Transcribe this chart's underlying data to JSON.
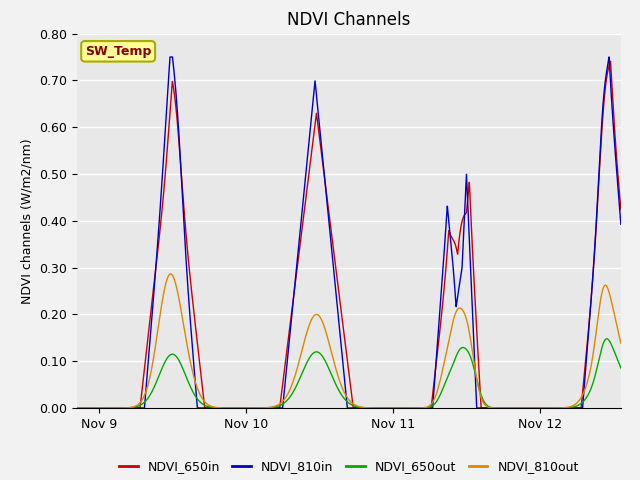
{
  "title": "NDVI Channels",
  "ylabel": "NDVI channels (W/m2/nm)",
  "ylim": [
    0.0,
    0.8
  ],
  "yticks": [
    0.0,
    0.1,
    0.2,
    0.3,
    0.4,
    0.5,
    0.6,
    0.7,
    0.8
  ],
  "xtick_labels": [
    "Nov 9",
    "Nov 10",
    "Nov 11",
    "Nov 12"
  ],
  "xtick_positions": [
    0.0,
    1.0,
    2.0,
    3.0
  ],
  "xlim": [
    -0.15,
    3.55
  ],
  "legend_labels": [
    "NDVI_650in",
    "NDVI_810in",
    "NDVI_650out",
    "NDVI_810out"
  ],
  "legend_colors": [
    "#cc0000",
    "#0000cc",
    "#00aa00",
    "#dd8800"
  ],
  "sw_temp_box_color": "#ffff99",
  "sw_temp_text_color": "#880000",
  "sw_temp_edge_color": "#aaaa00",
  "background_color": "#e8e8e8",
  "grid_color": "#ffffff",
  "title_fontsize": 12,
  "tick_fontsize": 9,
  "label_fontsize": 9,
  "legend_fontsize": 9
}
